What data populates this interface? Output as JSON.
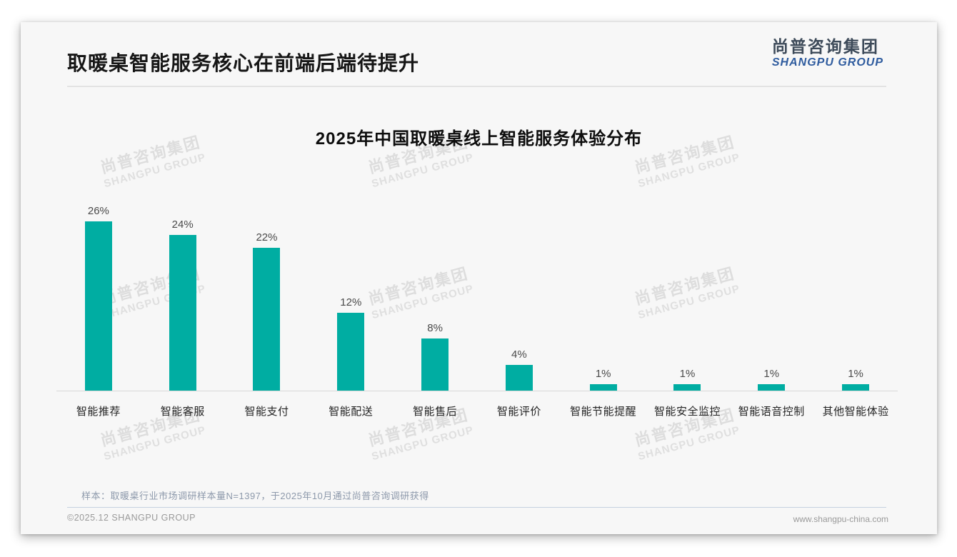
{
  "header": {
    "title": "取暖桌智能服务核心在前端后端待提升",
    "logo_cn": "尚普咨询集团",
    "logo_en": "SHANGPU GROUP"
  },
  "watermark": {
    "line1": "尚普咨询集团",
    "line2": "SHANGPU GROUP"
  },
  "chart_data": {
    "type": "bar",
    "title": "2025年中国取暖桌线上智能服务体验分布",
    "categories": [
      "智能推荐",
      "智能客服",
      "智能支付",
      "智能配送",
      "智能售后",
      "智能评价",
      "智能节能提醒",
      "智能安全监控",
      "智能语音控制",
      "其他智能体验"
    ],
    "values": [
      26,
      24,
      22,
      12,
      8,
      4,
      1,
      1,
      1,
      1
    ],
    "unit": "%",
    "bar_color": "#00ada2",
    "value_label_color": "#4a4a4a",
    "xlabel": "",
    "ylabel": "",
    "ylim": [
      0,
      28
    ],
    "grid": false,
    "legend": false
  },
  "footer": {
    "note": "样本：取暖桌行业市场调研样本量N=1397，于2025年10月通过尚普咨询调研获得",
    "copyright": "©2025.12 SHANGPU GROUP",
    "website": "www.shangpu-china.com"
  }
}
